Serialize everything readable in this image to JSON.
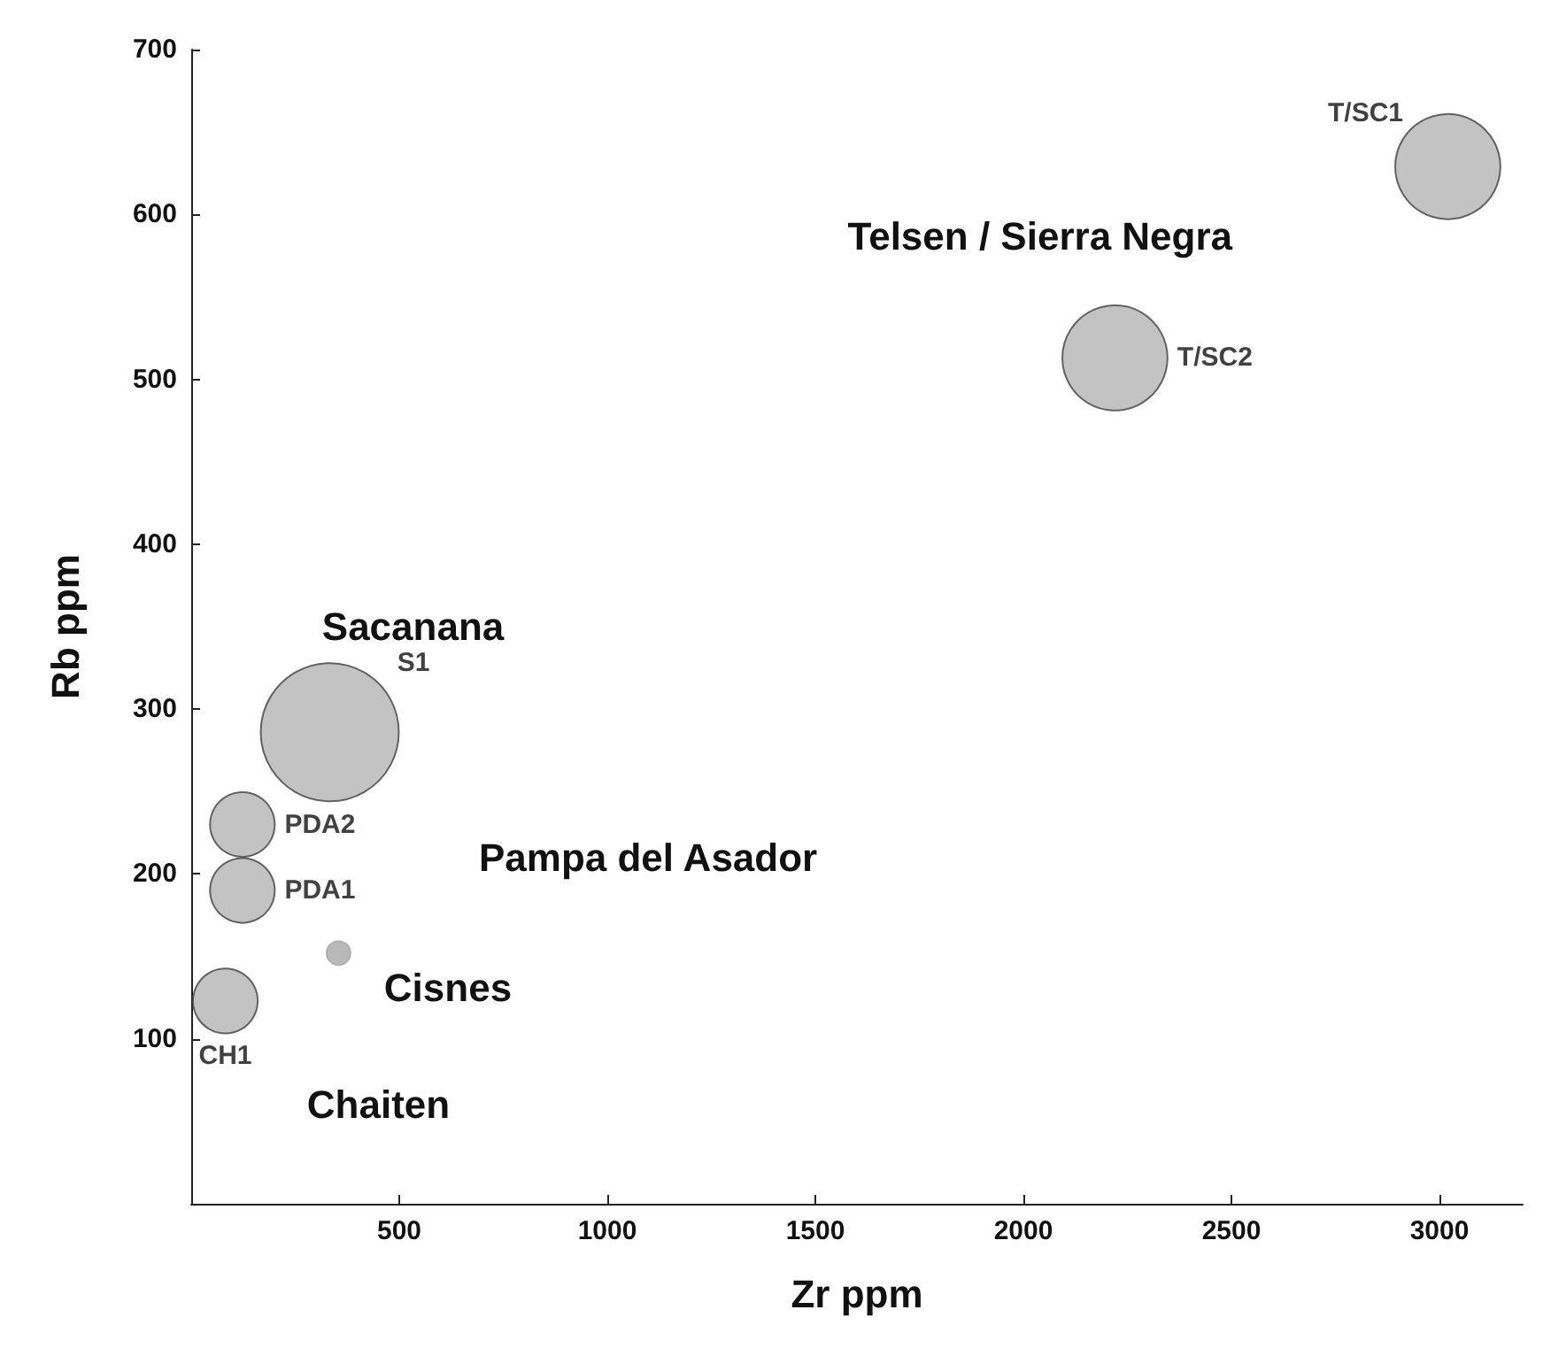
{
  "chart_data": {
    "type": "bubble",
    "xlabel": "Zr ppm",
    "ylabel": "Rb ppm",
    "xlim": [
      0,
      3200
    ],
    "ylim": [
      0,
      700
    ],
    "xticks": [
      500,
      1000,
      1500,
      2000,
      2500,
      3000
    ],
    "yticks": [
      100,
      200,
      300,
      400,
      500,
      600,
      700
    ],
    "grid": false,
    "legend": false,
    "marker": "circle",
    "series": [
      {
        "name": "T/SC1",
        "color": "#b4b4b4",
        "x": [
          3020
        ],
        "values": [
          629
        ],
        "sizes": [
          0.58
        ]
      },
      {
        "name": "T/SC2",
        "color": "#b4b4b4",
        "x": [
          2220
        ],
        "values": [
          513
        ],
        "sizes": [
          0.58
        ]
      },
      {
        "name": "S1",
        "color": "#b4b4b4",
        "x": [
          333
        ],
        "values": [
          286
        ],
        "sizes": [
          1
        ]
      },
      {
        "name": "PDA2",
        "color": "#b4b4b4",
        "x": [
          123
        ],
        "values": [
          230
        ],
        "sizes": [
          0.22
        ]
      },
      {
        "name": "PDA1",
        "color": "#b4b4b4",
        "x": [
          123
        ],
        "values": [
          190
        ],
        "sizes": [
          0.22
        ]
      },
      {
        "name": "CH1",
        "color": "#b4b4b4",
        "x": [
          82
        ],
        "values": [
          123
        ],
        "sizes": [
          0.22
        ]
      },
      {
        "color": "#a8a8a8",
        "x": [
          354
        ],
        "values": [
          152
        ],
        "sizes": [
          0.03
        ]
      }
    ],
    "annotations": [
      "Telsen / Sierra Negra",
      "Sacanana",
      "Pampa del Asador",
      "Cisnes",
      "Chaiten"
    ]
  }
}
